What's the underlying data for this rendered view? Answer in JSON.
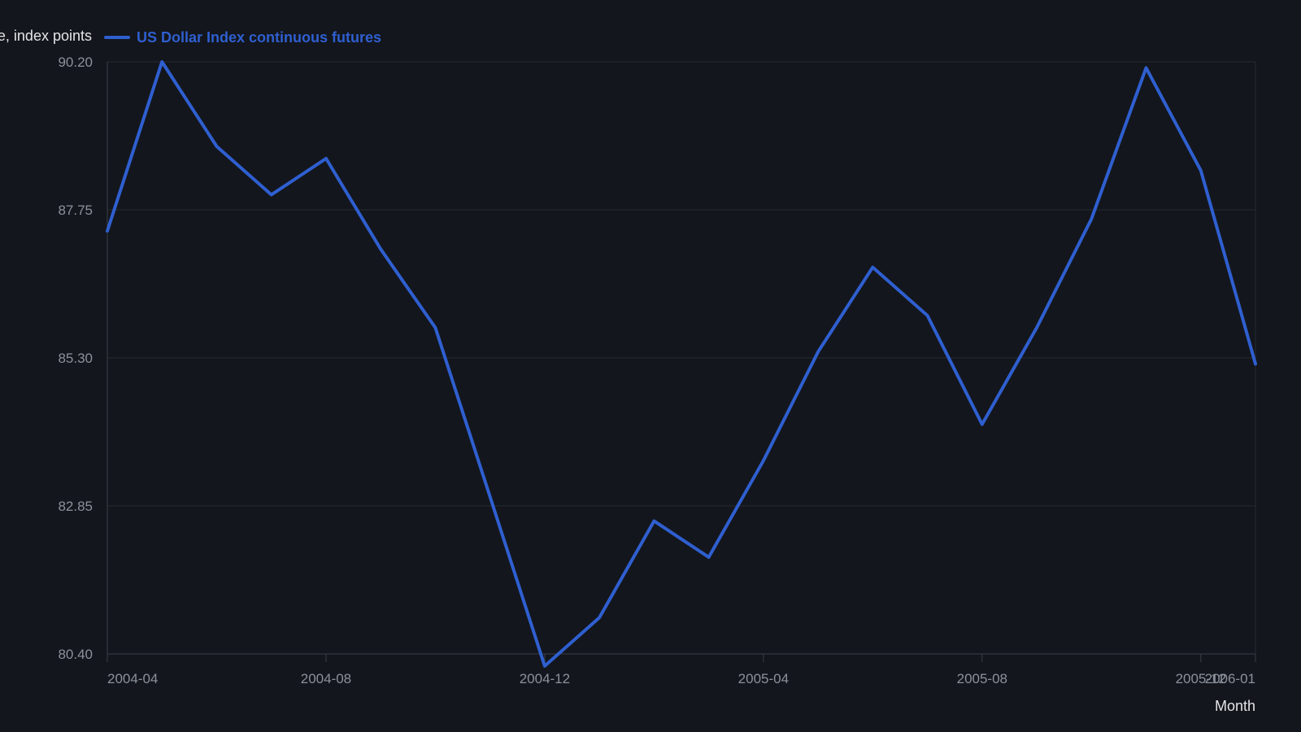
{
  "chart_data": {
    "type": "line",
    "legend_position": "top-left",
    "grid": true,
    "xlabel": "Month",
    "ylabel": "Value, index points",
    "ylim": [
      80.4,
      90.2
    ],
    "yticks": [
      "80.40",
      "82.85",
      "85.30",
      "87.75",
      "90.20"
    ],
    "xticks": [
      {
        "label": "2004-04",
        "x": "2004-03"
      },
      {
        "label": "2004-08",
        "x": "2004-07"
      },
      {
        "label": "2004-12",
        "x": "2004-11"
      },
      {
        "label": "2005-04",
        "x": "2005-03"
      },
      {
        "label": "2005-08",
        "x": "2005-07"
      },
      {
        "label": "2005-12",
        "x": "2005-11"
      },
      {
        "label": "2006-01",
        "x": "2005-12"
      }
    ],
    "x": [
      "2004-03",
      "2004-04",
      "2004-05",
      "2004-06",
      "2004-07",
      "2004-08",
      "2004-09",
      "2004-10",
      "2004-11",
      "2004-12",
      "2005-01",
      "2005-02",
      "2005-03",
      "2005-04",
      "2005-05",
      "2005-06",
      "2005-07",
      "2005-08",
      "2005-09",
      "2005-10",
      "2005-11",
      "2005-12"
    ],
    "series": [
      {
        "name": "US Dollar Index continuous futures",
        "color": "#2f5fd0",
        "values": [
          87.4,
          90.2,
          88.8,
          88.0,
          88.6,
          87.1,
          85.8,
          83.0,
          80.2,
          81.0,
          82.6,
          82.0,
          83.6,
          85.4,
          86.8,
          86.0,
          84.2,
          85.8,
          87.6,
          90.1,
          88.4,
          85.2
        ]
      }
    ],
    "colors": {
      "background": "#13161c",
      "grid": "#262a32",
      "axis": "#3a3f48",
      "tick_text": "#8b919c",
      "title_text": "#e3e5e8"
    }
  }
}
